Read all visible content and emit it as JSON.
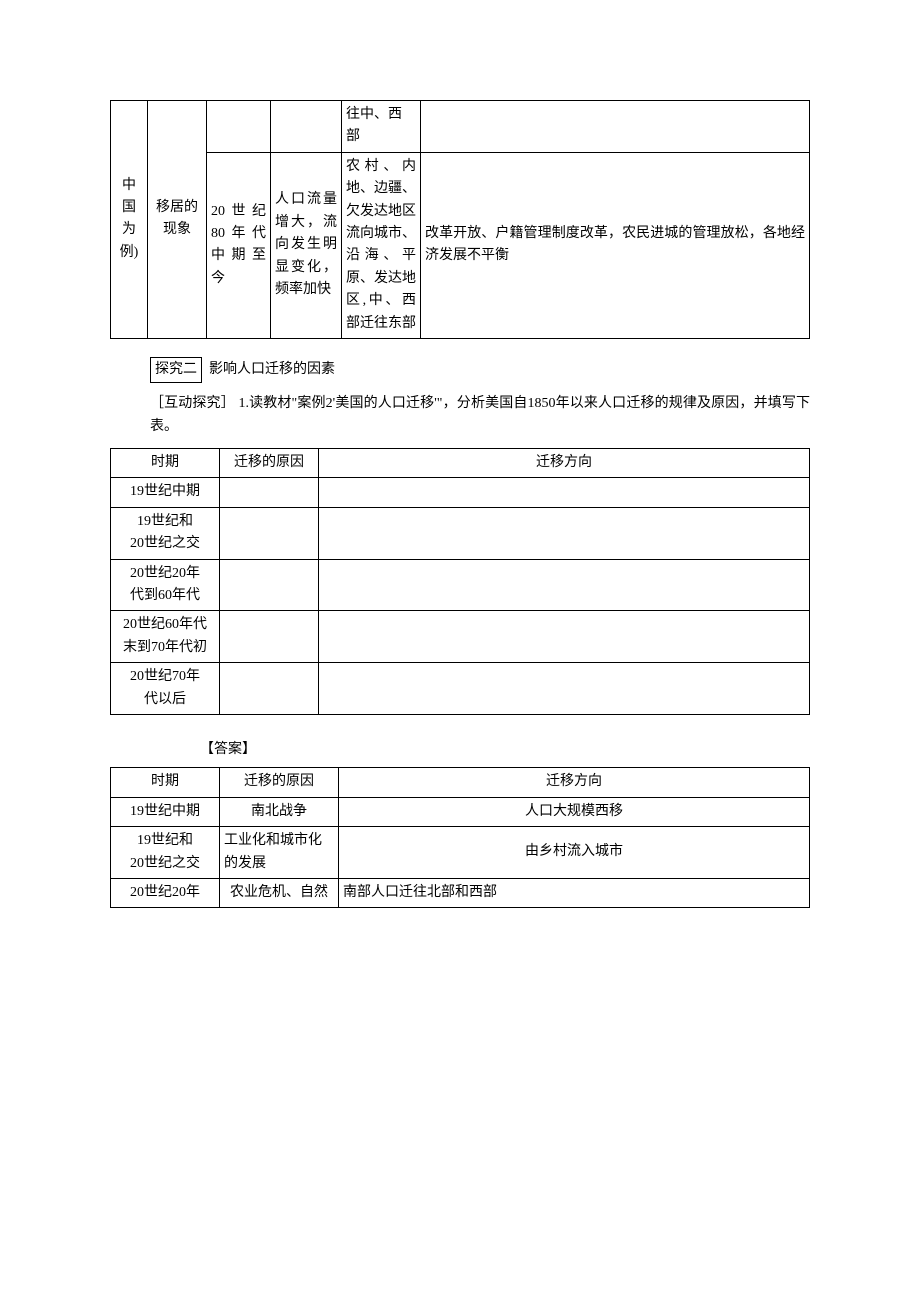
{
  "table1": {
    "col1_lines": [
      "中",
      "国",
      "为",
      "例)"
    ],
    "row1": {
      "c2a": "移居的",
      "c2b": "现象",
      "c5a": "往中、西",
      "c5b": "部"
    },
    "row2": {
      "c3": "20世纪80年代中期至今",
      "c4": "人口流量增大，流向发生明显变化，频率加快",
      "c5": "农村、内地、边疆、欠发达地区流向城市、沿海、平原、发达地区,中、西部迁往东部",
      "c6": "改革开放、户籍管理制度改革，农民进城的管理放松，各地经济发展不平衡"
    }
  },
  "heading": {
    "box": "探究二",
    "rest": "影响人口迁移的因素"
  },
  "intro": "［互动探究］ 1.读教材\"案例2'美国的人口迁移'\"，分析美国自1850年以来人口迁移的规律及原因，并填写下表。",
  "table2": {
    "header": {
      "c1": "时期",
      "c2": "迁移的原因",
      "c3": "迁移方向"
    },
    "rows": [
      {
        "c1": "19世纪中期"
      },
      {
        "c1a": "19世纪和",
        "c1b": "20世纪之交"
      },
      {
        "c1a": "20世纪20年",
        "c1b": "代到60年代"
      },
      {
        "c1a": "20世纪60年代",
        "c1b": "末到70年代初"
      },
      {
        "c1a": "20世纪70年",
        "c1b": "代以后"
      }
    ]
  },
  "answerLabel": "【答案】",
  "table3": {
    "header": {
      "c1": "时期",
      "c2": "迁移的原因",
      "c3": "迁移方向"
    },
    "rows": [
      {
        "c1": "19世纪中期",
        "c2": "南北战争",
        "c3": "人口大规模西移"
      },
      {
        "c1a": "19世纪和",
        "c1b": "20世纪之交",
        "c2": "工业化和城市化的发展",
        "c3": "由乡村流入城市"
      },
      {
        "c1": "20世纪20年",
        "c2": "农业危机、自然",
        "c3": "南部人口迁往北部和西部"
      }
    ]
  }
}
